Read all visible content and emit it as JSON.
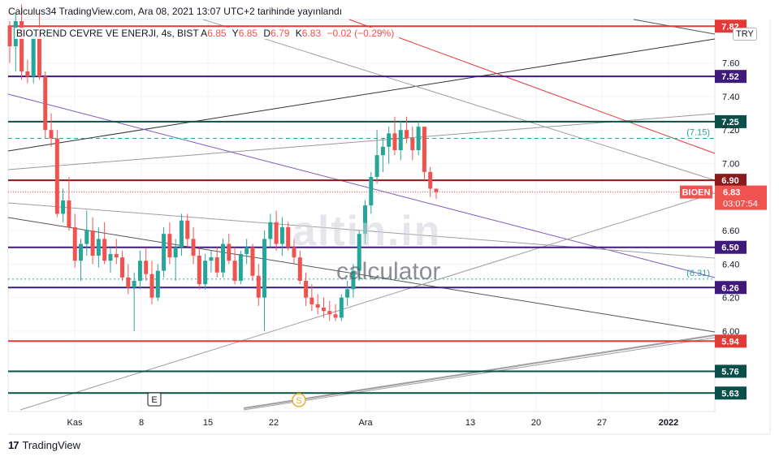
{
  "header": {
    "publish_line": "Calculus34 TradingView.com, Ara 08, 2021 13:07 UTC+2 tarihinde yayınlandı"
  },
  "legend": {
    "symbol": "BIOTREND CEVRE VE ENERJI, 4s, BIST",
    "open_label": "A",
    "open": "6.85",
    "high_label": "Y",
    "high": "6.85",
    "low_label": "D",
    "low": "6.79",
    "close_label": "K",
    "close": "6.83",
    "change": "−0.02 (−0.29%)"
  },
  "currency_button": "TRY",
  "footer": {
    "brand": "TradingView"
  },
  "watermark": {
    "logo": "altin.in",
    "text": "calculator"
  },
  "colors": {
    "up": "#26a69a",
    "down": "#ef5350",
    "red_level": "#e53935",
    "purple_level": "#3f1a7a",
    "teal_level": "#0b4f4a",
    "darkred_level": "#8b1a1a",
    "grid": "#f0f3fa",
    "axis_text": "#131722"
  },
  "chart_data": {
    "type": "candlestick",
    "x_tick_labels": [
      "Kas",
      "8",
      "15",
      "22",
      "Ara",
      "13",
      "20",
      "27",
      "2022"
    ],
    "y_tick_labels": [
      "7.60",
      "7.40",
      "7.20",
      "7.00",
      "6.60",
      "6.40",
      "6.20",
      "6.00"
    ],
    "ylim": [
      5.52,
      7.86
    ],
    "horizontal_levels": [
      {
        "label": "7.82",
        "value": 7.82,
        "kind": "red"
      },
      {
        "label": "7.52",
        "value": 7.52,
        "kind": "purple"
      },
      {
        "label": "7.25",
        "value": 7.25,
        "kind": "teal"
      },
      {
        "label": "6.90",
        "value": 6.9,
        "kind": "darkred"
      },
      {
        "label": "6.50",
        "value": 6.5,
        "kind": "purple"
      },
      {
        "label": "6.26",
        "value": 6.26,
        "kind": "purple"
      },
      {
        "label": "5.94",
        "value": 5.94,
        "kind": "red"
      },
      {
        "label": "5.76",
        "value": 5.76,
        "kind": "teal"
      },
      {
        "label": "5.63",
        "value": 5.63,
        "kind": "teal"
      }
    ],
    "dashed_levels": [
      {
        "label": "(7.15)",
        "value": 7.15
      },
      {
        "label": "(6.31)",
        "value": 6.31
      }
    ],
    "last_price": {
      "symbol": "BIOEN",
      "value": "6.83",
      "countdown": "03:07:54",
      "numeric": 6.83
    },
    "events": [
      {
        "label": "E"
      },
      {
        "label": "S"
      }
    ],
    "ohlc": [
      [
        7.82,
        7.85,
        7.6,
        7.7
      ],
      [
        7.7,
        7.9,
        7.55,
        7.85
      ],
      [
        7.85,
        7.95,
        7.5,
        7.55
      ],
      [
        7.55,
        7.62,
        7.48,
        7.52
      ],
      [
        7.52,
        7.8,
        7.48,
        7.78
      ],
      [
        7.78,
        7.9,
        7.5,
        7.52
      ],
      [
        7.52,
        7.55,
        7.15,
        7.2
      ],
      [
        7.2,
        7.3,
        7.1,
        7.15
      ],
      [
        7.15,
        7.2,
        6.68,
        6.7
      ],
      [
        6.7,
        6.85,
        6.65,
        6.78
      ],
      [
        6.78,
        6.92,
        6.6,
        6.62
      ],
      [
        6.62,
        6.7,
        6.38,
        6.42
      ],
      [
        6.42,
        6.55,
        6.3,
        6.52
      ],
      [
        6.52,
        6.72,
        6.45,
        6.6
      ],
      [
        6.6,
        6.68,
        6.4,
        6.45
      ],
      [
        6.45,
        6.62,
        6.38,
        6.55
      ],
      [
        6.55,
        6.65,
        6.4,
        6.42
      ],
      [
        6.42,
        6.5,
        6.35,
        6.46
      ],
      [
        6.46,
        6.55,
        6.4,
        6.44
      ],
      [
        6.44,
        6.48,
        6.3,
        6.32
      ],
      [
        6.32,
        6.4,
        6.22,
        6.26
      ],
      [
        6.26,
        6.35,
        6.0,
        6.3
      ],
      [
        6.3,
        6.48,
        6.25,
        6.42
      ],
      [
        6.42,
        6.5,
        6.3,
        6.34
      ],
      [
        6.34,
        6.42,
        6.16,
        6.2
      ],
      [
        6.2,
        6.4,
        6.18,
        6.36
      ],
      [
        6.36,
        6.62,
        6.32,
        6.58
      ],
      [
        6.58,
        6.65,
        6.4,
        6.44
      ],
      [
        6.44,
        6.55,
        6.3,
        6.5
      ],
      [
        6.5,
        6.7,
        6.45,
        6.66
      ],
      [
        6.66,
        6.7,
        6.5,
        6.55
      ],
      [
        6.55,
        6.62,
        6.4,
        6.45
      ],
      [
        6.45,
        6.5,
        6.25,
        6.28
      ],
      [
        6.28,
        6.46,
        6.25,
        6.42
      ],
      [
        6.42,
        6.48,
        6.35,
        6.44
      ],
      [
        6.44,
        6.5,
        6.32,
        6.35
      ],
      [
        6.35,
        6.55,
        6.32,
        6.52
      ],
      [
        6.52,
        6.58,
        6.4,
        6.42
      ],
      [
        6.42,
        6.5,
        6.28,
        6.3
      ],
      [
        6.3,
        6.48,
        6.28,
        6.46
      ],
      [
        6.46,
        6.55,
        6.4,
        6.5
      ],
      [
        6.5,
        6.52,
        6.3,
        6.33
      ],
      [
        6.33,
        6.4,
        6.15,
        6.2
      ],
      [
        6.2,
        6.6,
        6.0,
        6.55
      ],
      [
        6.55,
        6.7,
        6.5,
        6.65
      ],
      [
        6.65,
        6.72,
        6.48,
        6.52
      ],
      [
        6.52,
        6.68,
        6.45,
        6.62
      ],
      [
        6.62,
        6.65,
        6.48,
        6.5
      ],
      [
        6.5,
        6.55,
        6.4,
        6.44
      ],
      [
        6.44,
        6.48,
        6.28,
        6.3
      ],
      [
        6.3,
        6.35,
        6.15,
        6.2
      ],
      [
        6.2,
        6.28,
        6.12,
        6.16
      ],
      [
        6.16,
        6.22,
        6.1,
        6.14
      ],
      [
        6.14,
        6.2,
        6.08,
        6.12
      ],
      [
        6.12,
        6.18,
        6.06,
        6.1
      ],
      [
        6.1,
        6.16,
        6.06,
        6.08
      ],
      [
        6.08,
        6.22,
        6.06,
        6.2
      ],
      [
        6.2,
        6.3,
        6.15,
        6.25
      ],
      [
        6.25,
        6.4,
        6.2,
        6.36
      ],
      [
        6.36,
        6.6,
        6.3,
        6.58
      ],
      [
        6.58,
        6.78,
        6.52,
        6.75
      ],
      [
        6.75,
        6.95,
        6.7,
        6.92
      ],
      [
        6.92,
        7.2,
        6.88,
        7.05
      ],
      [
        7.05,
        7.15,
        6.95,
        7.1
      ],
      [
        7.1,
        7.22,
        7.0,
        7.18
      ],
      [
        7.18,
        7.28,
        7.05,
        7.08
      ],
      [
        7.08,
        7.25,
        7.02,
        7.2
      ],
      [
        7.2,
        7.28,
        7.12,
        7.15
      ],
      [
        7.15,
        7.22,
        7.02,
        7.08
      ],
      [
        7.08,
        7.25,
        7.05,
        7.22
      ],
      [
        7.22,
        7.22,
        6.9,
        6.95
      ],
      [
        6.95,
        6.98,
        6.8,
        6.85
      ],
      [
        6.85,
        6.85,
        6.79,
        6.83
      ]
    ]
  }
}
